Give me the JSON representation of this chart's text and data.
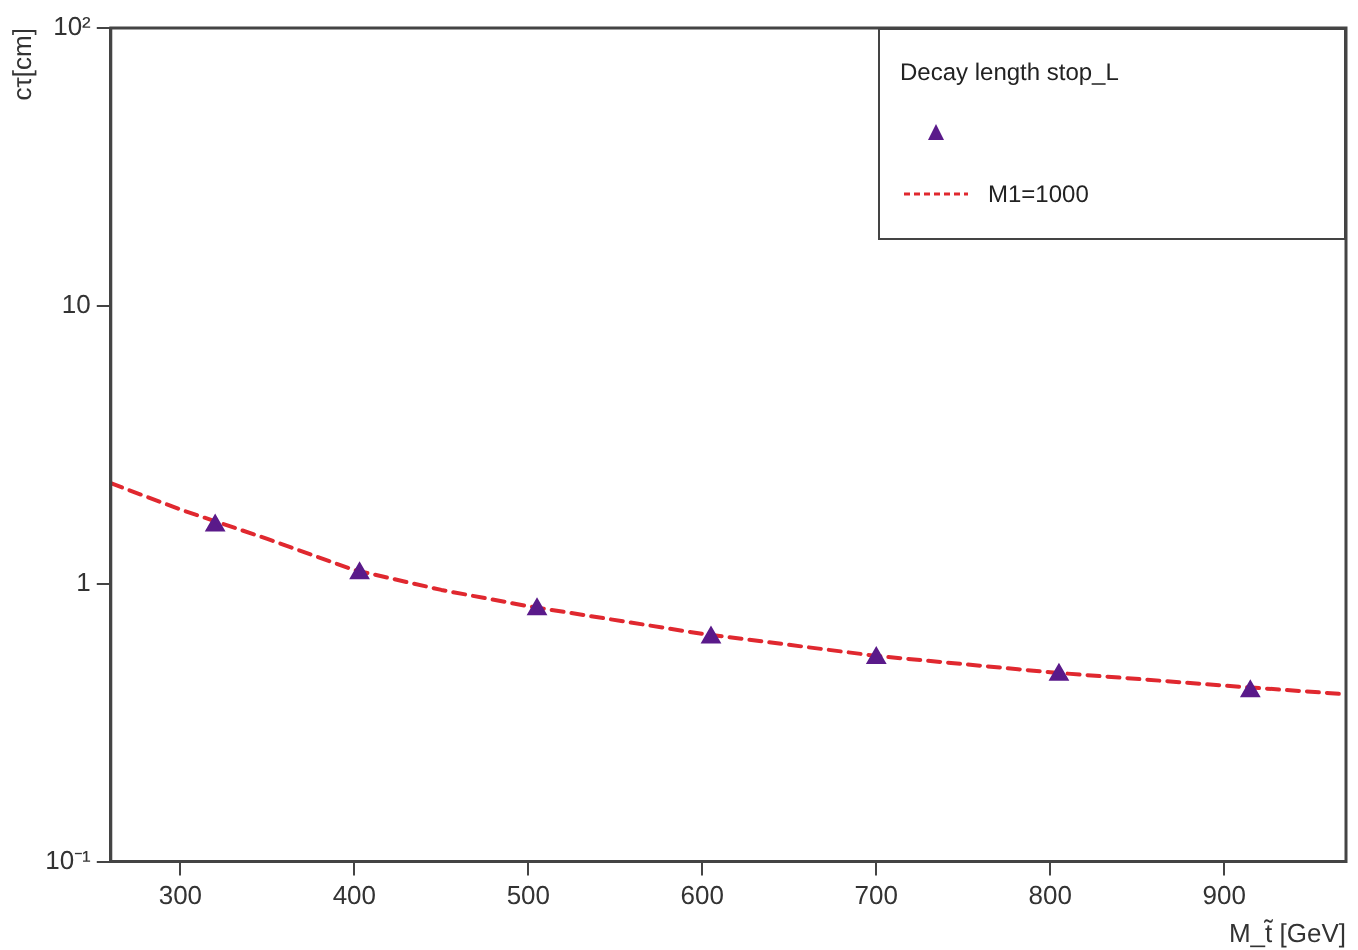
{
  "chart_data": {
    "type": "scatter",
    "xlabel": "M_t̃ [GeV]",
    "ylabel": "cτ[cm]",
    "legend_title": "Decay length stop_L",
    "series": [
      {
        "color": "#5a1a8a",
        "marker": "triangle",
        "x": [
          320,
          403,
          505,
          605,
          700,
          805,
          915
        ],
        "values": [
          1.62,
          1.09,
          0.81,
          0.64,
          0.54,
          0.47,
          0.41
        ]
      },
      {
        "type": "line",
        "name": "M1=1000",
        "color": "#e0282f",
        "marker": "none",
        "line_style": "dashed",
        "x": [
          260,
          300,
          350,
          400,
          450,
          500,
          600,
          700,
          800,
          900,
          970
        ],
        "values": [
          2.3,
          1.85,
          1.45,
          1.12,
          0.95,
          0.83,
          0.66,
          0.55,
          0.48,
          0.43,
          0.4
        ]
      }
    ],
    "log": "y",
    "grid": false,
    "legend": "top right",
    "xlim": [
      260,
      970
    ],
    "xticks": [
      300,
      400,
      500,
      600,
      700,
      800,
      900
    ],
    "ylim": [
      0.1,
      100
    ],
    "yticks": [
      {
        "value": 0.1,
        "label": "10⁻¹"
      },
      1,
      10,
      {
        "value": 100,
        "label": "10²"
      }
    ]
  }
}
